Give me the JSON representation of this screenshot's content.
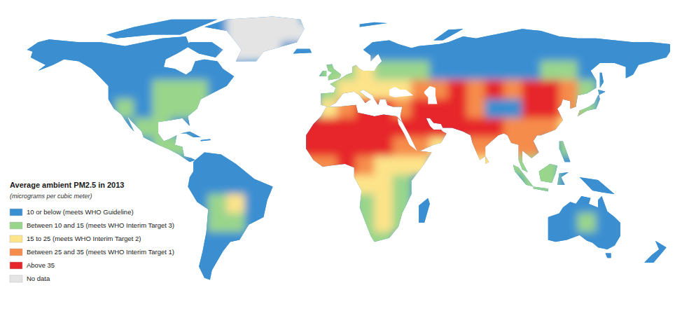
{
  "chart_data": {
    "type": "map",
    "title": "Average ambient PM2.5 in 2013",
    "subtitle": "(micrograms per cubic meter)",
    "legend": "bottom-left",
    "classes": [
      {
        "label": "10 or below (meets WHO Guideline)",
        "color": "#3a8fd1"
      },
      {
        "label": "Between 10 and 15 (meets WHO Interim Target 3)",
        "color": "#9ad58c"
      },
      {
        "label": "15 to 25 (meets WHO Interim Target 2)",
        "color": "#fde38a"
      },
      {
        "label": "Between 25 and 35 (meets WHO Interim Target 1)",
        "color": "#f68c4c"
      },
      {
        "label": "Above 35",
        "color": "#e6262b"
      },
      {
        "label": "No data",
        "color": "#e4e4e4"
      }
    ],
    "xlim": [
      -180,
      180
    ],
    "ylim": [
      -60,
      90
    ],
    "lon_edges": [
      -180,
      -170,
      -160,
      -150,
      -140,
      -130,
      -120,
      -110,
      -100,
      -90,
      -80,
      -70,
      -60,
      -50,
      -40,
      -30,
      -20,
      -10,
      0,
      10,
      20,
      30,
      40,
      50,
      60,
      70,
      80,
      90,
      100,
      110,
      120,
      130,
      140,
      150,
      160,
      170,
      180
    ],
    "lat_edges": [
      90,
      80,
      70,
      60,
      50,
      40,
      30,
      20,
      10,
      0,
      -10,
      -20,
      -30,
      -40,
      -50,
      -60
    ],
    "cells": [
      [
        null,
        null,
        null,
        null,
        null,
        null,
        null,
        null,
        null,
        0,
        0,
        0,
        5,
        5,
        5,
        5,
        null,
        null,
        null,
        null,
        null,
        null,
        null,
        null,
        null,
        null,
        null,
        null,
        null,
        null,
        null,
        null,
        null,
        null,
        null,
        null
      ],
      [
        null,
        0,
        0,
        0,
        0,
        0,
        0,
        0,
        0,
        0,
        0,
        0,
        5,
        5,
        5,
        5,
        5,
        null,
        null,
        0,
        0,
        0,
        0,
        0,
        0,
        0,
        0,
        0,
        0,
        0,
        0,
        0,
        0,
        0,
        0,
        0
      ],
      [
        0,
        0,
        0,
        0,
        0,
        0,
        0,
        0,
        0,
        0,
        0,
        0,
        5,
        5,
        5,
        0,
        0,
        null,
        0,
        0,
        0,
        0,
        0,
        0,
        0,
        0,
        0,
        0,
        0,
        0,
        0,
        0,
        0,
        0,
        0,
        0
      ],
      [
        null,
        0,
        0,
        0,
        0,
        0,
        0,
        0,
        0,
        0,
        0,
        0,
        0,
        null,
        null,
        null,
        null,
        1,
        1,
        2,
        1,
        1,
        1,
        0,
        0,
        0,
        0,
        0,
        0,
        1,
        1,
        0,
        0,
        0,
        null,
        null
      ],
      [
        null,
        null,
        null,
        null,
        null,
        0,
        0,
        0,
        1,
        1,
        1,
        0,
        0,
        null,
        null,
        null,
        null,
        1,
        2,
        2,
        2,
        2,
        3,
        3,
        4,
        3,
        4,
        3,
        4,
        4,
        3,
        1,
        0,
        null,
        null,
        null
      ],
      [
        null,
        null,
        null,
        null,
        null,
        0,
        1,
        0,
        1,
        1,
        1,
        null,
        null,
        null,
        null,
        null,
        null,
        2,
        3,
        4,
        4,
        3,
        4,
        4,
        4,
        3,
        0,
        0,
        4,
        4,
        3,
        1,
        0,
        null,
        null,
        null
      ],
      [
        null,
        null,
        null,
        null,
        null,
        null,
        0,
        1,
        1,
        0,
        0,
        null,
        null,
        null,
        null,
        null,
        4,
        4,
        4,
        4,
        4,
        4,
        4,
        4,
        4,
        4,
        4,
        3,
        3,
        3,
        2,
        null,
        null,
        null,
        null,
        null
      ],
      [
        null,
        null,
        null,
        null,
        null,
        null,
        null,
        0,
        1,
        1,
        0,
        0,
        null,
        null,
        null,
        null,
        4,
        4,
        4,
        4,
        4,
        3,
        3,
        2,
        null,
        3,
        3,
        3,
        3,
        null,
        1,
        null,
        null,
        null,
        null,
        null
      ],
      [
        null,
        null,
        null,
        null,
        null,
        null,
        null,
        null,
        null,
        0,
        0,
        0,
        0,
        0,
        null,
        null,
        3,
        3,
        4,
        3,
        2,
        2,
        2,
        null,
        null,
        2,
        2,
        1,
        1,
        1,
        0,
        null,
        null,
        null,
        null,
        null
      ],
      [
        null,
        null,
        null,
        null,
        null,
        null,
        null,
        null,
        null,
        null,
        0,
        0,
        0,
        0,
        0,
        null,
        null,
        null,
        2,
        2,
        2,
        1,
        null,
        null,
        null,
        null,
        null,
        null,
        1,
        1,
        0,
        0,
        0,
        null,
        null,
        null
      ],
      [
        null,
        null,
        null,
        null,
        null,
        null,
        null,
        null,
        null,
        null,
        0,
        1,
        2,
        0,
        0,
        null,
        null,
        null,
        null,
        1,
        2,
        1,
        0,
        null,
        null,
        null,
        null,
        null,
        null,
        null,
        0,
        0,
        0,
        null,
        null,
        null
      ],
      [
        null,
        null,
        null,
        null,
        null,
        null,
        null,
        null,
        null,
        null,
        0,
        1,
        1,
        0,
        null,
        null,
        null,
        null,
        null,
        1,
        2,
        1,
        0,
        null,
        null,
        null,
        null,
        null,
        null,
        0,
        0,
        1,
        0,
        0,
        null,
        null
      ],
      [
        null,
        null,
        null,
        null,
        null,
        null,
        null,
        null,
        null,
        null,
        0,
        0,
        0,
        null,
        null,
        null,
        null,
        null,
        null,
        1,
        1,
        null,
        null,
        null,
        null,
        null,
        null,
        null,
        null,
        0,
        0,
        0,
        0,
        0,
        null,
        0
      ],
      [
        null,
        null,
        null,
        null,
        null,
        null,
        null,
        null,
        null,
        null,
        0,
        0,
        null,
        null,
        null,
        null,
        null,
        null,
        null,
        null,
        null,
        null,
        null,
        null,
        null,
        null,
        null,
        null,
        null,
        null,
        null,
        null,
        0,
        null,
        0,
        0
      ],
      [
        null,
        null,
        null,
        null,
        null,
        null,
        null,
        null,
        null,
        null,
        0,
        0,
        null,
        null,
        null,
        null,
        null,
        null,
        null,
        null,
        null,
        null,
        null,
        null,
        null,
        null,
        null,
        null,
        null,
        null,
        null,
        null,
        null,
        null,
        null,
        null
      ]
    ]
  }
}
